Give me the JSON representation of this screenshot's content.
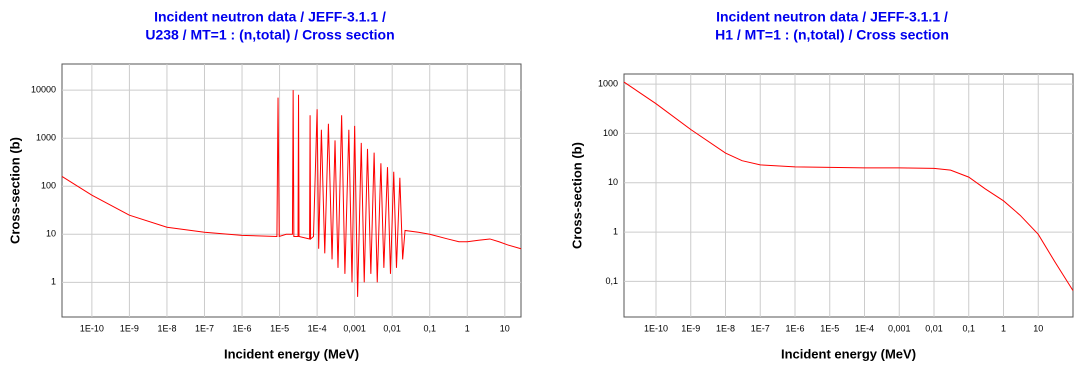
{
  "chart_data": [
    {
      "type": "line",
      "title": [
        "Incident neutron data / JEFF-3.1.1 /",
        "U238 / MT=1 : (n,total) / Cross section"
      ],
      "xlabel": "Incident energy (MeV)",
      "ylabel": "Cross-section (b)",
      "log_x": true,
      "log_y": true,
      "grid": true,
      "color": "#ff0000",
      "xlim": [
        1.6e-11,
        27
      ],
      "ylim": [
        0.19,
        35000
      ],
      "xticks": [
        {
          "value": 1e-10,
          "label": "1E-10"
        },
        {
          "value": 1e-09,
          "label": "1E-9"
        },
        {
          "value": 1e-08,
          "label": "1E-8"
        },
        {
          "value": 1e-07,
          "label": "1E-7"
        },
        {
          "value": 1e-06,
          "label": "1E-6"
        },
        {
          "value": 1e-05,
          "label": "1E-5"
        },
        {
          "value": 0.0001,
          "label": "1E-4"
        },
        {
          "value": 0.001,
          "label": "0,001"
        },
        {
          "value": 0.01,
          "label": "0,01"
        },
        {
          "value": 0.1,
          "label": "0,1"
        },
        1,
        10
      ],
      "yticks": [
        1,
        10,
        100,
        1000,
        10000
      ],
      "x": [
        1.6e-11,
        1e-10,
        1e-09,
        1e-08,
        1e-07,
        1e-06,
        8.5e-06,
        9.1e-06,
        9.8e-06,
        1.5e-05,
        2.2e-05,
        2.3e-05,
        2.4e-05,
        3.1e-05,
        3.2e-05,
        3.3e-05,
        6.3e-05,
        6.5e-05,
        6.7e-05,
        8e-05,
        0.0001,
        0.00011,
        0.00013,
        0.00016,
        0.0002,
        0.00025,
        0.0003,
        0.00036,
        0.00045,
        0.00055,
        0.0007,
        0.00085,
        0.001,
        0.0012,
        0.0015,
        0.0018,
        0.0022,
        0.0027,
        0.0033,
        0.004,
        0.005,
        0.006,
        0.0075,
        0.009,
        0.011,
        0.013,
        0.016,
        0.019,
        0.022,
        0.05,
        0.1,
        0.3,
        0.6,
        1,
        2,
        4,
        7,
        12,
        27
      ],
      "values": [
        160,
        65,
        25,
        14,
        11,
        9.5,
        9,
        7000,
        9,
        10,
        10,
        10000,
        9,
        9,
        8000,
        9,
        8,
        3000,
        8,
        9,
        4000,
        5,
        1500,
        4,
        2000,
        3,
        900,
        2,
        3000,
        1.5,
        1500,
        1,
        1800,
        0.5,
        800,
        1,
        600,
        1.5,
        500,
        1,
        300,
        2,
        250,
        1.5,
        200,
        2,
        150,
        3,
        12,
        11,
        10,
        8,
        7,
        7,
        7.5,
        8,
        7,
        6,
        5
      ]
    },
    {
      "type": "line",
      "title": [
        "Incident neutron data / JEFF-3.1.1 /",
        "H1 / MT=1 : (n,total) / Cross section"
      ],
      "xlabel": "Incident energy (MeV)",
      "ylabel": "Cross-section (b)",
      "log_x": true,
      "log_y": true,
      "grid": true,
      "color": "#ff0000",
      "xlim": [
        1.2e-11,
        100
      ],
      "ylim": [
        0.019,
        1600
      ],
      "xticks": [
        {
          "value": 1e-10,
          "label": "1E-10"
        },
        {
          "value": 1e-09,
          "label": "1E-9"
        },
        {
          "value": 1e-08,
          "label": "1E-8"
        },
        {
          "value": 1e-07,
          "label": "1E-7"
        },
        {
          "value": 1e-06,
          "label": "1E-6"
        },
        {
          "value": 1e-05,
          "label": "1E-5"
        },
        {
          "value": 0.0001,
          "label": "1E-4"
        },
        {
          "value": 0.001,
          "label": "0,001"
        },
        {
          "value": 0.01,
          "label": "0,01"
        },
        {
          "value": 0.1,
          "label": "0,1"
        },
        1,
        10
      ],
      "yticks": [
        {
          "value": 0.1,
          "label": "0,1"
        },
        1,
        10,
        100,
        1000
      ],
      "x": [
        1.2e-11,
        1e-10,
        1e-09,
        1e-08,
        3e-08,
        1e-07,
        1e-06,
        1e-05,
        0.0001,
        0.001,
        0.01,
        0.03,
        0.1,
        0.3,
        1,
        3,
        10,
        30,
        100
      ],
      "values": [
        1100,
        400,
        120,
        40,
        28,
        23,
        21,
        20.5,
        20,
        20,
        19.5,
        18,
        13,
        7.5,
        4.3,
        2.2,
        0.9,
        0.25,
        0.065
      ]
    }
  ]
}
